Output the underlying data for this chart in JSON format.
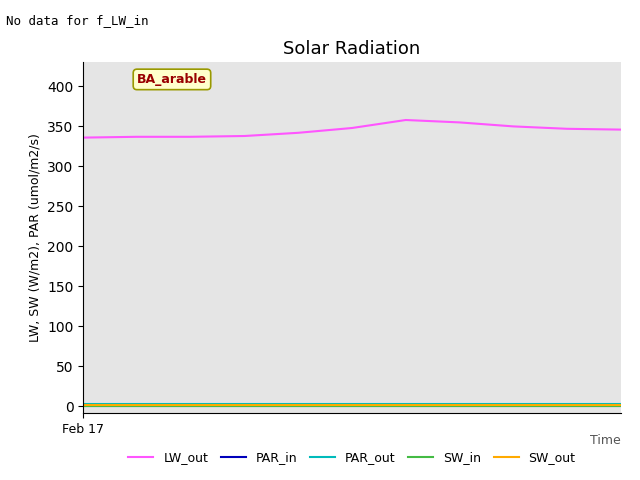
{
  "title": "Solar Radiation",
  "no_data_text": "No data for f_LW_in",
  "ylabel": "LW, SW (W/m2), PAR (umol/m2/s)",
  "site_label": "BA_arable",
  "ylim": [
    -8,
    430
  ],
  "yticks": [
    0,
    50,
    100,
    150,
    200,
    250,
    300,
    350,
    400
  ],
  "xlim": [
    0,
    10
  ],
  "x_tick_label": "Feb 17",
  "xlabel_right": "Time",
  "background_color": "#e5e5e5",
  "lw_out_color": "#ff55ff",
  "par_in_color": "#0000bb",
  "par_out_color": "#00bbbb",
  "sw_in_color": "#44bb44",
  "sw_out_color": "#ffaa00",
  "lw_out_x": [
    0,
    1,
    2,
    3,
    4,
    5,
    6,
    7,
    8,
    9,
    10
  ],
  "lw_out_y": [
    336,
    337,
    337,
    338,
    342,
    348,
    358,
    355,
    350,
    347,
    346
  ],
  "par_in_y": [
    0.5,
    0.5,
    0.5,
    0.5,
    0.5,
    0.5,
    0.5,
    0.5,
    0.5,
    0.5,
    0.5
  ],
  "par_out_y": [
    2.5,
    2.5,
    2.5,
    2.5,
    2.5,
    2.5,
    2.5,
    2.5,
    2.5,
    2.5,
    2.5
  ],
  "sw_in_y": [
    0.2,
    0.2,
    0.2,
    0.2,
    0.2,
    0.2,
    0.2,
    0.2,
    0.2,
    0.2,
    0.2
  ],
  "sw_out_y": [
    1.5,
    1.5,
    1.5,
    1.5,
    1.5,
    1.5,
    1.5,
    1.5,
    1.5,
    1.5,
    1.5
  ],
  "legend_labels": [
    "LW_out",
    "PAR_in",
    "PAR_out",
    "SW_in",
    "SW_out"
  ],
  "legend_colors": [
    "#ff55ff",
    "#0000bb",
    "#00bbbb",
    "#44bb44",
    "#ffaa00"
  ],
  "title_fontsize": 13,
  "label_fontsize": 9,
  "site_text_color": "#990000",
  "site_box_facecolor": "#ffffcc",
  "site_box_edgecolor": "#999900"
}
